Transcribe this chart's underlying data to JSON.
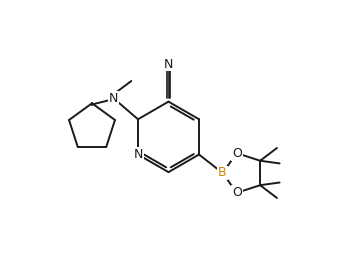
{
  "bg_color": "#ffffff",
  "bond_color": "#1a1a1a",
  "N_color": "#1a1a1a",
  "B_color": "#cc8800",
  "O_color": "#1a1a1a",
  "font_size": 8.5,
  "line_width": 1.4,
  "figsize": [
    3.37,
    2.57
  ],
  "dpi": 100,
  "xlim": [
    0,
    10
  ],
  "ylim": [
    0,
    7.6
  ]
}
